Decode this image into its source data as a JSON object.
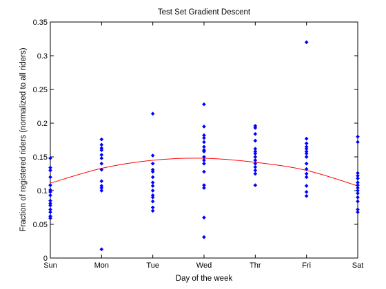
{
  "chart_data": {
    "type": "scatter",
    "title": "Test Set Gradient Descent",
    "xlabel": "Day of the week",
    "ylabel": "Fraction of registered riders (normalized to all riders)",
    "categories": [
      "Sun",
      "Mon",
      "Tue",
      "Wed",
      "Thr",
      "Fri",
      "Sat"
    ],
    "ylim": [
      0,
      0.35
    ],
    "yticks": [
      "0",
      "0.05",
      "0.1",
      "0.15",
      "0.2",
      "0.25",
      "0.3",
      "0.35"
    ],
    "grid": false,
    "legend": "none",
    "series": [
      {
        "mark": "point",
        "color": "#0000ff",
        "points": [
          {
            "x": "Sun",
            "y": 0.148
          },
          {
            "x": "Sun",
            "y": 0.134
          },
          {
            "x": "Sun",
            "y": 0.13
          },
          {
            "x": "Sun",
            "y": 0.12
          },
          {
            "x": "Sun",
            "y": 0.108
          },
          {
            "x": "Sun",
            "y": 0.101
          },
          {
            "x": "Sun",
            "y": 0.098
          },
          {
            "x": "Sun",
            "y": 0.093
          },
          {
            "x": "Sun",
            "y": 0.085
          },
          {
            "x": "Sun",
            "y": 0.081
          },
          {
            "x": "Sun",
            "y": 0.078
          },
          {
            "x": "Sun",
            "y": 0.072
          },
          {
            "x": "Sun",
            "y": 0.068
          },
          {
            "x": "Sun",
            "y": 0.062
          },
          {
            "x": "Sun",
            "y": 0.059
          },
          {
            "x": "Mon",
            "y": 0.176
          },
          {
            "x": "Mon",
            "y": 0.168
          },
          {
            "x": "Mon",
            "y": 0.163
          },
          {
            "x": "Mon",
            "y": 0.16
          },
          {
            "x": "Mon",
            "y": 0.153
          },
          {
            "x": "Mon",
            "y": 0.148
          },
          {
            "x": "Mon",
            "y": 0.14
          },
          {
            "x": "Mon",
            "y": 0.131
          },
          {
            "x": "Mon",
            "y": 0.114
          },
          {
            "x": "Mon",
            "y": 0.107
          },
          {
            "x": "Mon",
            "y": 0.104
          },
          {
            "x": "Mon",
            "y": 0.1
          },
          {
            "x": "Mon",
            "y": 0.013
          },
          {
            "x": "Tue",
            "y": 0.214
          },
          {
            "x": "Tue",
            "y": 0.152
          },
          {
            "x": "Tue",
            "y": 0.14
          },
          {
            "x": "Tue",
            "y": 0.131
          },
          {
            "x": "Tue",
            "y": 0.128
          },
          {
            "x": "Tue",
            "y": 0.12
          },
          {
            "x": "Tue",
            "y": 0.112
          },
          {
            "x": "Tue",
            "y": 0.107
          },
          {
            "x": "Tue",
            "y": 0.1
          },
          {
            "x": "Tue",
            "y": 0.093
          },
          {
            "x": "Tue",
            "y": 0.09
          },
          {
            "x": "Tue",
            "y": 0.084
          },
          {
            "x": "Tue",
            "y": 0.075
          },
          {
            "x": "Tue",
            "y": 0.07
          },
          {
            "x": "Wed",
            "y": 0.228
          },
          {
            "x": "Wed",
            "y": 0.195
          },
          {
            "x": "Wed",
            "y": 0.182
          },
          {
            "x": "Wed",
            "y": 0.178
          },
          {
            "x": "Wed",
            "y": 0.172
          },
          {
            "x": "Wed",
            "y": 0.165
          },
          {
            "x": "Wed",
            "y": 0.16
          },
          {
            "x": "Wed",
            "y": 0.158
          },
          {
            "x": "Wed",
            "y": 0.15
          },
          {
            "x": "Wed",
            "y": 0.145
          },
          {
            "x": "Wed",
            "y": 0.14
          },
          {
            "x": "Wed",
            "y": 0.128
          },
          {
            "x": "Wed",
            "y": 0.108
          },
          {
            "x": "Wed",
            "y": 0.104
          },
          {
            "x": "Wed",
            "y": 0.06
          },
          {
            "x": "Wed",
            "y": 0.031
          },
          {
            "x": "Thr",
            "y": 0.196
          },
          {
            "x": "Thr",
            "y": 0.193
          },
          {
            "x": "Thr",
            "y": 0.184
          },
          {
            "x": "Thr",
            "y": 0.174
          },
          {
            "x": "Thr",
            "y": 0.162
          },
          {
            "x": "Thr",
            "y": 0.158
          },
          {
            "x": "Thr",
            "y": 0.155
          },
          {
            "x": "Thr",
            "y": 0.15
          },
          {
            "x": "Thr",
            "y": 0.145
          },
          {
            "x": "Thr",
            "y": 0.14
          },
          {
            "x": "Thr",
            "y": 0.135
          },
          {
            "x": "Thr",
            "y": 0.13
          },
          {
            "x": "Thr",
            "y": 0.125
          },
          {
            "x": "Thr",
            "y": 0.108
          },
          {
            "x": "Fri",
            "y": 0.32
          },
          {
            "x": "Fri",
            "y": 0.177
          },
          {
            "x": "Fri",
            "y": 0.17
          },
          {
            "x": "Fri",
            "y": 0.165
          },
          {
            "x": "Fri",
            "y": 0.162
          },
          {
            "x": "Fri",
            "y": 0.158
          },
          {
            "x": "Fri",
            "y": 0.155
          },
          {
            "x": "Fri",
            "y": 0.15
          },
          {
            "x": "Fri",
            "y": 0.14
          },
          {
            "x": "Fri",
            "y": 0.132
          },
          {
            "x": "Fri",
            "y": 0.125
          },
          {
            "x": "Fri",
            "y": 0.12
          },
          {
            "x": "Fri",
            "y": 0.107
          },
          {
            "x": "Fri",
            "y": 0.098
          },
          {
            "x": "Fri",
            "y": 0.092
          },
          {
            "x": "Sat",
            "y": 0.18
          },
          {
            "x": "Sat",
            "y": 0.172
          },
          {
            "x": "Sat",
            "y": 0.126
          },
          {
            "x": "Sat",
            "y": 0.122
          },
          {
            "x": "Sat",
            "y": 0.118
          },
          {
            "x": "Sat",
            "y": 0.112
          },
          {
            "x": "Sat",
            "y": 0.108
          },
          {
            "x": "Sat",
            "y": 0.104
          },
          {
            "x": "Sat",
            "y": 0.1
          },
          {
            "x": "Sat",
            "y": 0.096
          },
          {
            "x": "Sat",
            "y": 0.09
          },
          {
            "x": "Sat",
            "y": 0.084
          },
          {
            "x": "Sat",
            "y": 0.072
          },
          {
            "x": "Sat",
            "y": 0.068
          }
        ]
      },
      {
        "mark": "line",
        "color": "#ff0000",
        "points": [
          {
            "x": "Sun",
            "y": 0.111
          },
          {
            "x": "Mon",
            "y": 0.133
          },
          {
            "x": "Tue",
            "y": 0.145
          },
          {
            "x": "Wed",
            "y": 0.148
          },
          {
            "x": "Thr",
            "y": 0.142
          },
          {
            "x": "Fri",
            "y": 0.13
          },
          {
            "x": "Sat",
            "y": 0.107
          }
        ]
      }
    ]
  }
}
